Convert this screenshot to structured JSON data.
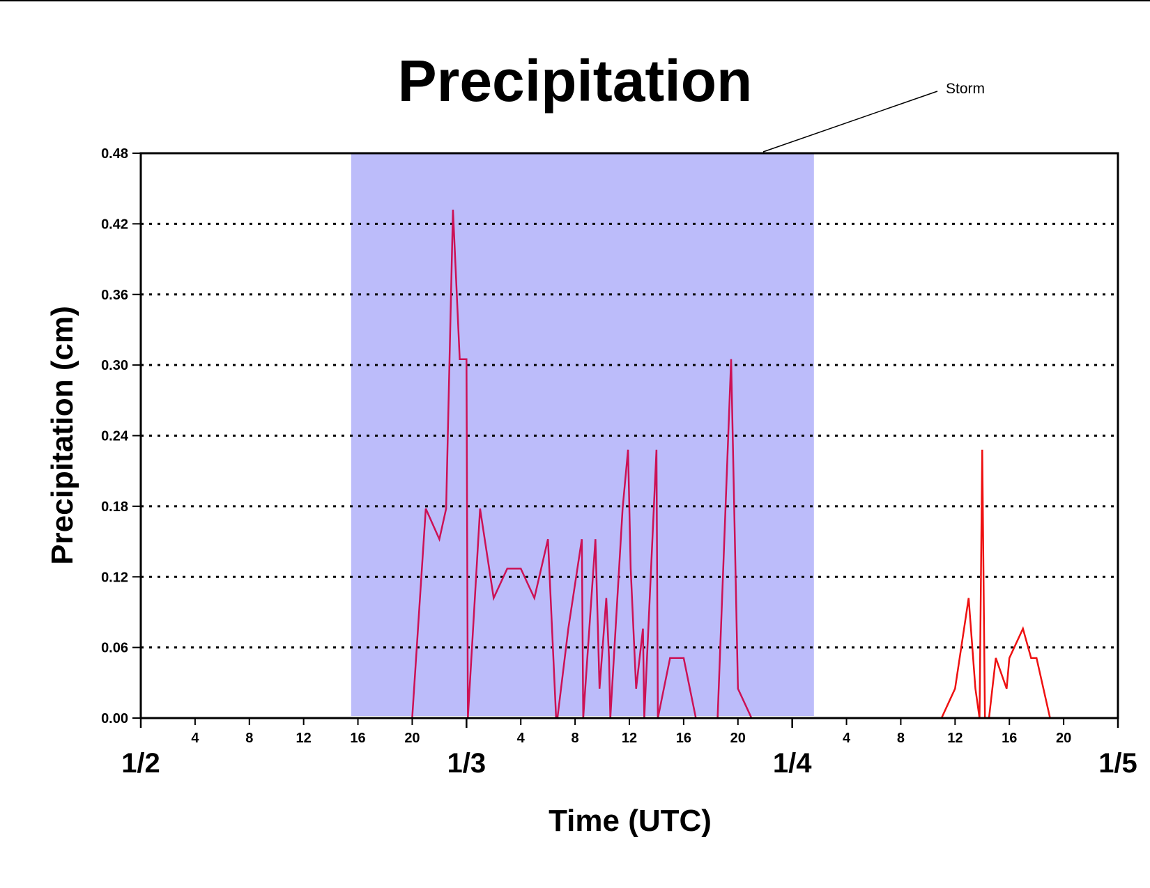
{
  "chart_data": {
    "type": "line",
    "title": "Precipitation",
    "xlabel": "Time (UTC)",
    "ylabel": "Precipitation (cm)",
    "ylim": [
      0,
      0.48
    ],
    "yticks": [
      0.0,
      0.06,
      0.12,
      0.18,
      0.24,
      0.3,
      0.36,
      0.42,
      0.48
    ],
    "ytick_labels": [
      "0.00",
      "0.06",
      "0.12",
      "0.18",
      "0.24",
      "0.30",
      "0.36",
      "0.42",
      "0.48"
    ],
    "x_unit": "hours since 1/2 00:00 UTC",
    "xlim": [
      0,
      72
    ],
    "hour_ticks": [
      4,
      8,
      12,
      16,
      20
    ],
    "day_labels": [
      "1/2",
      "1/3",
      "1/4",
      "1/5"
    ],
    "grid": "dotted horizontal",
    "colors": {
      "storm_shade": "#bcbcfa",
      "storm_series": "#cc1155",
      "post_storm_series": "#ee1111"
    },
    "annotation": {
      "text": "Storm",
      "x_start_hours": 15.5,
      "x_end_hours": 49.6
    },
    "series": [
      {
        "color": "#cc1155",
        "x": [
          0,
          20,
          21,
          22,
          22.5,
          23,
          23.5,
          24,
          24.1,
          25,
          26,
          27,
          28,
          29,
          30,
          30.6,
          30.7,
          31.5,
          32.5,
          32.6,
          33.5,
          33.8,
          34.3,
          34.5,
          34.6,
          35.5,
          35.9,
          36,
          36.1,
          36.5,
          37,
          37.1,
          38,
          38.1,
          39,
          40,
          40.9,
          42.5,
          43.5,
          44,
          45,
          45.9
        ],
        "y": [
          0,
          0,
          0.178,
          0.152,
          0.178,
          0.432,
          0.305,
          0.305,
          0,
          0.178,
          0.102,
          0.127,
          0.127,
          0.102,
          0.152,
          0,
          0,
          0.076,
          0.152,
          0,
          0.152,
          0.025,
          0.102,
          0.051,
          0,
          0.178,
          0.228,
          0.178,
          0.127,
          0.025,
          0.076,
          0,
          0.228,
          0,
          0.051,
          0.051,
          0,
          0,
          0.305,
          0.025,
          0,
          0
        ]
      },
      {
        "color": "#ee1111",
        "x": [
          45.9,
          59,
          60,
          61,
          61.5,
          61.8,
          62,
          62.2,
          62.5,
          63,
          63.8,
          64,
          65,
          65.6,
          66,
          67,
          72
        ],
        "y": [
          0,
          0,
          0.025,
          0.102,
          0.025,
          0,
          0.228,
          0,
          0,
          0.051,
          0.025,
          0.051,
          0.076,
          0.051,
          0.051,
          0,
          0
        ]
      }
    ]
  }
}
